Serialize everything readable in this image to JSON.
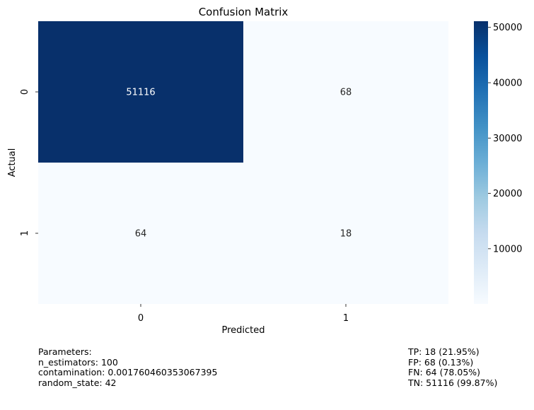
{
  "chart_data": {
    "type": "heatmap",
    "title": "Confusion Matrix",
    "xlabel": "Predicted",
    "ylabel": "Actual",
    "x_categories": [
      "0",
      "1"
    ],
    "y_categories": [
      "0",
      "1"
    ],
    "values": [
      [
        51116,
        68
      ],
      [
        64,
        18
      ]
    ],
    "colormap": "Blues",
    "colorbar": {
      "ticks": [
        10000,
        20000,
        30000,
        40000,
        50000
      ],
      "tick_labels": [
        "10000",
        "20000",
        "30000",
        "40000",
        "50000"
      ],
      "range": [
        18,
        51116
      ]
    },
    "grid": false
  },
  "parameters": {
    "heading": "Parameters:",
    "lines": [
      "n_estimators: 100",
      "contamination: 0.001760460353067395",
      "random_state: 42"
    ]
  },
  "metrics": {
    "lines": [
      "TP: 18 (21.95%)",
      "FP: 68 (0.13%)",
      "FN: 64 (78.05%)",
      "TN: 51116 (99.87%)"
    ]
  }
}
